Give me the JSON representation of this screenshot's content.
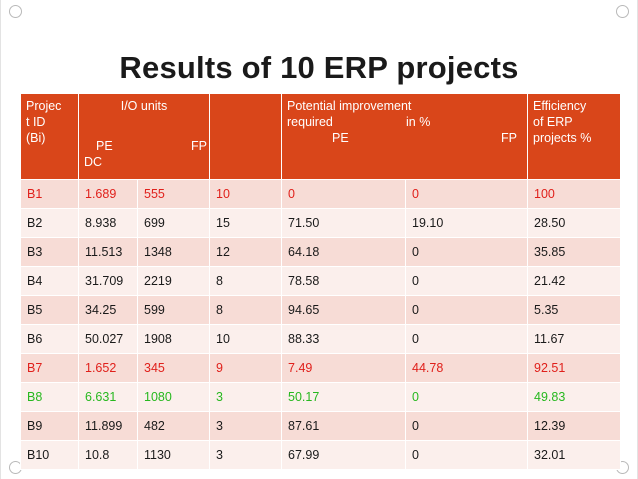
{
  "title": "Results of 10 ERP projects",
  "headers": {
    "project_id": [
      "Projec",
      "t ID",
      "(Bi)"
    ],
    "io_units": "I/O units",
    "io_pe": "PE",
    "io_fp": "FP",
    "io_dc": "DC",
    "potential_line1": "Potential improvement",
    "potential_line2": "required",
    "potential_in": "in %",
    "potential_pe": "PE",
    "potential_fp": "FP",
    "efficiency": [
      "Efficiency",
      "of ERP",
      "projects %"
    ]
  },
  "rows": [
    {
      "id": "B1",
      "pe_dc": "1.689",
      "fp": " 555",
      "c3": "10",
      "imp_pe": "0",
      "imp_fp": "0",
      "eff": "100",
      "highlight": "red"
    },
    {
      "id": "B2",
      "pe_dc": "8.938",
      "fp": " 699",
      "c3": "15",
      "imp_pe": "71.50",
      "imp_fp": "19.10",
      "eff": "28.50",
      "highlight": ""
    },
    {
      "id": "B3",
      "pe_dc": "11.513",
      "fp": "1348",
      "c3": "12",
      "imp_pe": "64.18",
      "imp_fp": "0",
      "eff": "35.85",
      "highlight": ""
    },
    {
      "id": "B4",
      "pe_dc": "31.709",
      "fp": "2219",
      "c3": "8",
      "imp_pe": "78.58",
      "imp_fp": "0",
      "eff": "21.42",
      "highlight": ""
    },
    {
      "id": "B5",
      "pe_dc": "34.25",
      "fp": "599",
      "c3": "8",
      "imp_pe": "94.65",
      "imp_fp": "0",
      "eff": "5.35",
      "highlight": ""
    },
    {
      "id": "B6",
      "pe_dc": "50.027",
      "fp": "1908",
      "c3": "10",
      "imp_pe": "88.33",
      "imp_fp": "0",
      "eff": "11.67",
      "highlight": ""
    },
    {
      "id": "B7",
      "pe_dc": "1.652",
      "fp": "345",
      "c3": "9",
      "imp_pe": "7.49",
      "imp_fp": "44.78",
      "eff": "92.51",
      "highlight": "red"
    },
    {
      "id": "B8",
      "pe_dc": "6.631",
      "fp": "1080",
      "c3": "3",
      "imp_pe": "50.17",
      "imp_fp": "0",
      "eff": "49.83",
      "highlight": "green"
    },
    {
      "id": "B9",
      "pe_dc": "11.899",
      "fp": "482",
      "c3": "3",
      "imp_pe": "87.61",
      "imp_fp": "0",
      "eff": "12.39",
      "highlight": ""
    },
    {
      "id": "B10",
      "pe_dc": "10.8",
      "fp": "1130",
      "c3": "3",
      "imp_pe": "67.99",
      "imp_fp": "0",
      "eff": "32.01",
      "highlight": ""
    }
  ],
  "colors": {
    "header_bg": "#d9461a",
    "row_odd": "#f7dcd6",
    "row_even": "#fbefec",
    "highlight_red": "#e0201b",
    "highlight_green": "#27b81f"
  }
}
